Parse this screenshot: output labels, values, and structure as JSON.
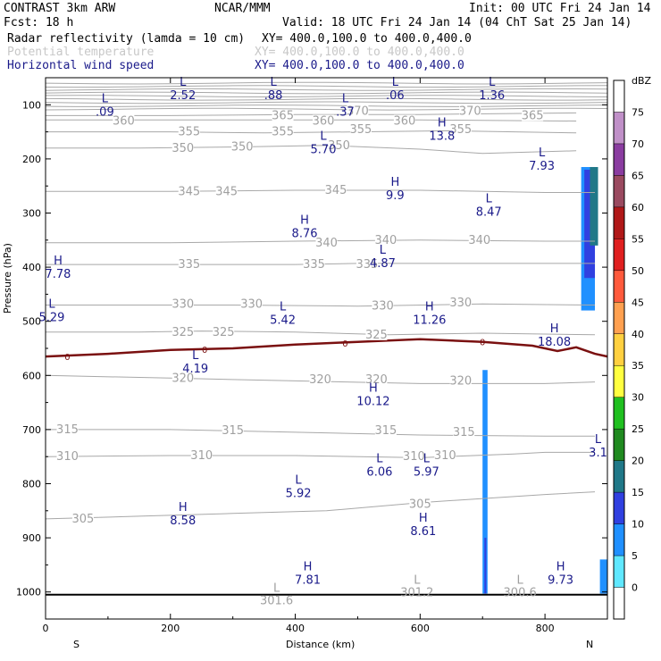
{
  "header": {
    "model": "CONTRAST  3km ARW",
    "org": "NCAR/MMM",
    "init": "Init: 00 UTC Fri 24 Jan 14",
    "fcst": "Fcst:   18 h",
    "valid": "Valid: 18 UTC Fri 24 Jan 14 (04 ChT Sat 25 Jan 14)",
    "field1_name": "Radar reflectivity (lamda = 10 cm)",
    "field1_xy": "XY= 400.0,100.0 to 400.0,400.0",
    "field2_name": "Potential temperature",
    "field2_xy": "XY= 400.0,100.0 to 400.0,400.0",
    "field3_name": "Horizontal wind speed",
    "field3_xy": "XY= 400.0,100.0 to 400.0,400.0"
  },
  "colors": {
    "theta": "#a8a8a8",
    "wind_labels": "#1a1a8a",
    "freezing_line": "#7a1010",
    "ground": "#000000"
  },
  "chart_data": {
    "type": "cross-section",
    "title": "Radar reflectivity / Potential temperature / Horizontal wind speed",
    "xlabel": "Distance (km)",
    "ylabel": "Pressure (hPa)",
    "xlim": [
      0,
      900
    ],
    "ylim": [
      1050,
      50
    ],
    "x_ticks": [
      "0",
      "200",
      "400",
      "600",
      "800"
    ],
    "y_ticks": [
      "100",
      "200",
      "300",
      "400",
      "500",
      "600",
      "700",
      "800",
      "900",
      "1000"
    ],
    "direction_left": "S",
    "direction_right": "N",
    "colorbar": {
      "unit": "dBZ",
      "labels": [
        "75",
        "70",
        "65",
        "60",
        "55",
        "50",
        "45",
        "40",
        "35",
        "30",
        "25",
        "20",
        "15",
        "10",
        "5",
        "0"
      ],
      "colors": [
        "#ffffff",
        "#c090c8",
        "#8a3ca0",
        "#9a4a60",
        "#b01818",
        "#e02020",
        "#ff5a3c",
        "#ffa050",
        "#ffd040",
        "#ffff40",
        "#20c020",
        "#208a20",
        "#207888",
        "#3040e0",
        "#2090ff",
        "#60e8ff",
        "#ffffff"
      ]
    },
    "theta_contours": [
      {
        "label": "365",
        "points": [
          [
            0,
            120
          ],
          [
            200,
            120
          ],
          [
            400,
            118
          ],
          [
            600,
            118
          ],
          [
            850,
            115
          ]
        ],
        "labels_at": [
          [
            380,
            120
          ],
          [
            790,
            118
          ]
        ]
      },
      {
        "label": "360",
        "points": [
          [
            0,
            128
          ],
          [
            200,
            128
          ],
          [
            400,
            128
          ],
          [
            600,
            128
          ],
          [
            850,
            130
          ]
        ],
        "labels_at": [
          [
            120,
            128
          ],
          [
            450,
            132
          ],
          [
            580,
            128
          ]
        ]
      },
      {
        "label": "355",
        "points": [
          [
            0,
            150
          ],
          [
            200,
            150
          ],
          [
            350,
            152
          ],
          [
            500,
            150
          ],
          [
            650,
            148
          ],
          [
            850,
            152
          ]
        ],
        "labels_at": [
          [
            230,
            150
          ],
          [
            380,
            152
          ],
          [
            520,
            148
          ],
          [
            670,
            148
          ]
        ]
      },
      {
        "label": "350",
        "points": [
          [
            0,
            180
          ],
          [
            150,
            180
          ],
          [
            300,
            178
          ],
          [
            450,
            175
          ],
          [
            600,
            182
          ],
          [
            700,
            190
          ],
          [
            850,
            185
          ]
        ],
        "labels_at": [
          [
            220,
            180
          ],
          [
            320,
            178
          ],
          [
            470,
            175
          ]
        ]
      },
      {
        "label": "345",
        "points": [
          [
            0,
            260
          ],
          [
            200,
            260
          ],
          [
            400,
            258
          ],
          [
            600,
            258
          ],
          [
            800,
            262
          ],
          [
            880,
            262
          ]
        ],
        "labels_at": [
          [
            230,
            260
          ],
          [
            290,
            262
          ],
          [
            460,
            260
          ]
        ]
      },
      {
        "label": "340",
        "points": [
          [
            0,
            355
          ],
          [
            200,
            355
          ],
          [
            400,
            352
          ],
          [
            600,
            350
          ],
          [
            800,
            352
          ],
          [
            880,
            352
          ]
        ],
        "labels_at": [
          [
            440,
            352
          ],
          [
            560,
            350
          ],
          [
            700,
            350
          ]
        ]
      },
      {
        "label": "335",
        "points": [
          [
            0,
            395
          ],
          [
            200,
            395
          ],
          [
            400,
            395
          ],
          [
            500,
            393
          ],
          [
            800,
            393
          ],
          [
            880,
            393
          ]
        ],
        "labels_at": [
          [
            230,
            395
          ],
          [
            430,
            395
          ],
          [
            500,
            393
          ]
        ]
      },
      {
        "label": "330",
        "points": [
          [
            0,
            470
          ],
          [
            150,
            470
          ],
          [
            300,
            470
          ],
          [
            500,
            472
          ],
          [
            700,
            468
          ],
          [
            880,
            470
          ]
        ],
        "labels_at": [
          [
            220,
            470
          ],
          [
            330,
            470
          ],
          [
            550,
            472
          ],
          [
            680,
            468
          ]
        ]
      },
      {
        "label": "325",
        "points": [
          [
            0,
            520
          ],
          [
            150,
            520
          ],
          [
            250,
            518
          ],
          [
            400,
            520
          ],
          [
            550,
            525
          ],
          [
            700,
            522
          ],
          [
            880,
            525
          ]
        ],
        "labels_at": [
          [
            220,
            520
          ],
          [
            280,
            520
          ],
          [
            540,
            525
          ]
        ]
      },
      {
        "label": "320",
        "points": [
          [
            0,
            600
          ],
          [
            200,
            605
          ],
          [
            400,
            610
          ],
          [
            600,
            615
          ],
          [
            800,
            615
          ],
          [
            880,
            612
          ]
        ],
        "labels_at": [
          [
            220,
            605
          ],
          [
            450,
            610
          ],
          [
            540,
            612
          ],
          [
            670,
            612
          ]
        ]
      },
      {
        "label": "315",
        "points": [
          [
            0,
            700
          ],
          [
            200,
            700
          ],
          [
            400,
            705
          ],
          [
            600,
            710
          ],
          [
            800,
            712
          ],
          [
            880,
            712
          ]
        ],
        "labels_at": [
          [
            30,
            700
          ],
          [
            300,
            705
          ],
          [
            550,
            705
          ],
          [
            680,
            710
          ]
        ]
      },
      {
        "label": "310",
        "points": [
          [
            0,
            750
          ],
          [
            200,
            748
          ],
          [
            400,
            748
          ],
          [
            600,
            752
          ],
          [
            750,
            745
          ],
          [
            800,
            742
          ],
          [
            880,
            742
          ]
        ],
        "labels_at": [
          [
            30,
            750
          ],
          [
            250,
            748
          ],
          [
            590,
            752
          ],
          [
            640,
            748
          ]
        ]
      },
      {
        "label": "305",
        "points": [
          [
            0,
            865
          ],
          [
            150,
            860
          ],
          [
            300,
            855
          ],
          [
            450,
            850
          ],
          [
            600,
            835
          ],
          [
            800,
            820
          ],
          [
            880,
            815
          ]
        ],
        "labels_at": [
          [
            60,
            865
          ],
          [
            600,
            838
          ]
        ]
      }
    ],
    "theta_labels": [
      {
        "text": "365",
        "x": 380,
        "p": 120
      },
      {
        "text": "360",
        "x": 125,
        "p": 130
      },
      {
        "text": "360",
        "x": 445,
        "p": 130
      },
      {
        "text": "360",
        "x": 575,
        "p": 130
      },
      {
        "text": "370",
        "x": 500,
        "p": 112
      },
      {
        "text": "370",
        "x": 680,
        "p": 112
      },
      {
        "text": "365",
        "x": 780,
        "p": 120
      },
      {
        "text": "355",
        "x": 230,
        "p": 150
      },
      {
        "text": "355",
        "x": 380,
        "p": 150
      },
      {
        "text": "355",
        "x": 505,
        "p": 146
      },
      {
        "text": "355",
        "x": 665,
        "p": 146
      },
      {
        "text": "350",
        "x": 220,
        "p": 180
      },
      {
        "text": "350",
        "x": 315,
        "p": 178
      },
      {
        "text": "350",
        "x": 470,
        "p": 175
      },
      {
        "text": "345",
        "x": 230,
        "p": 260
      },
      {
        "text": "345",
        "x": 290,
        "p": 260
      },
      {
        "text": "345",
        "x": 465,
        "p": 258
      },
      {
        "text": "340",
        "x": 450,
        "p": 355
      },
      {
        "text": "340",
        "x": 545,
        "p": 350
      },
      {
        "text": "340",
        "x": 695,
        "p": 350
      },
      {
        "text": "335",
        "x": 230,
        "p": 395
      },
      {
        "text": "335",
        "x": 430,
        "p": 395
      },
      {
        "text": "335",
        "x": 515,
        "p": 395
      },
      {
        "text": "330",
        "x": 220,
        "p": 468
      },
      {
        "text": "330",
        "x": 330,
        "p": 468
      },
      {
        "text": "330",
        "x": 540,
        "p": 472
      },
      {
        "text": "330",
        "x": 665,
        "p": 466
      },
      {
        "text": "325",
        "x": 220,
        "p": 520
      },
      {
        "text": "325",
        "x": 285,
        "p": 520
      },
      {
        "text": "325",
        "x": 530,
        "p": 525
      },
      {
        "text": "320",
        "x": 220,
        "p": 605
      },
      {
        "text": "320",
        "x": 440,
        "p": 608
      },
      {
        "text": "320",
        "x": 530,
        "p": 608
      },
      {
        "text": "320",
        "x": 665,
        "p": 610
      },
      {
        "text": "315",
        "x": 35,
        "p": 700
      },
      {
        "text": "315",
        "x": 300,
        "p": 702
      },
      {
        "text": "315",
        "x": 545,
        "p": 702
      },
      {
        "text": "315",
        "x": 670,
        "p": 705
      },
      {
        "text": "310",
        "x": 35,
        "p": 750
      },
      {
        "text": "310",
        "x": 250,
        "p": 748
      },
      {
        "text": "310",
        "x": 590,
        "p": 750
      },
      {
        "text": "310",
        "x": 640,
        "p": 748
      },
      {
        "text": "305",
        "x": 60,
        "p": 865
      },
      {
        "text": "305",
        "x": 600,
        "p": 838
      }
    ],
    "wind_extrema": [
      {
        "hl": "L",
        "value": ".09",
        "x": 95,
        "p": 95
      },
      {
        "hl": "L",
        "value": "2.52",
        "x": 220,
        "p": 65
      },
      {
        "hl": "L",
        "value": ".88",
        "x": 365,
        "p": 65
      },
      {
        "hl": "L",
        "value": ".37",
        "x": 480,
        "p": 95
      },
      {
        "hl": "L",
        "value": ".06",
        "x": 560,
        "p": 65
      },
      {
        "hl": "L",
        "value": "1.36",
        "x": 715,
        "p": 65
      },
      {
        "hl": "H",
        "value": "13.8",
        "x": 635,
        "p": 140
      },
      {
        "hl": "L",
        "value": "7.93",
        "x": 795,
        "p": 195
      },
      {
        "hl": "L",
        "value": "5.70",
        "x": 445,
        "p": 165
      },
      {
        "hl": "H",
        "value": "9.9",
        "x": 560,
        "p": 250
      },
      {
        "hl": "L",
        "value": "8.47",
        "x": 710,
        "p": 280
      },
      {
        "hl": "H",
        "value": "8.76",
        "x": 415,
        "p": 320
      },
      {
        "hl": "L",
        "value": "4.87",
        "x": 540,
        "p": 375
      },
      {
        "hl": "H",
        "value": "7.78",
        "x": 20,
        "p": 395
      },
      {
        "hl": "L",
        "value": "5.29",
        "x": 10,
        "p": 475
      },
      {
        "hl": "L",
        "value": "5.42",
        "x": 380,
        "p": 480
      },
      {
        "hl": "H",
        "value": "11.26",
        "x": 615,
        "p": 480
      },
      {
        "hl": "H",
        "value": "18.08",
        "x": 815,
        "p": 520
      },
      {
        "hl": "L",
        "value": "4.19",
        "x": 240,
        "p": 570
      },
      {
        "hl": "H",
        "value": "10.12",
        "x": 525,
        "p": 630
      },
      {
        "hl": "L",
        "value": "3.1",
        "x": 885,
        "p": 725
      },
      {
        "hl": "L",
        "value": "6.06",
        "x": 535,
        "p": 760
      },
      {
        "hl": "L",
        "value": "5.97",
        "x": 610,
        "p": 760
      },
      {
        "hl": "L",
        "value": "5.92",
        "x": 405,
        "p": 800
      },
      {
        "hl": "H",
        "value": "8.58",
        "x": 220,
        "p": 850
      },
      {
        "hl": "H",
        "value": "8.61",
        "x": 605,
        "p": 870
      },
      {
        "hl": "H",
        "value": "7.81",
        "x": 420,
        "p": 960
      },
      {
        "hl": "H",
        "value": "9.73",
        "x": 825,
        "p": 960
      }
    ],
    "theta_extrema": [
      {
        "hl": "L",
        "value": "301.6",
        "x": 370,
        "p": 1000
      },
      {
        "hl": "L",
        "value": "301.2",
        "x": 595,
        "p": 985
      },
      {
        "hl": "L",
        "value": "300.6",
        "x": 760,
        "p": 985
      }
    ],
    "freezing_line": {
      "label": "0",
      "points": [
        [
          0,
          565
        ],
        [
          100,
          560
        ],
        [
          200,
          553
        ],
        [
          300,
          550
        ],
        [
          400,
          543
        ],
        [
          500,
          538
        ],
        [
          600,
          533
        ],
        [
          700,
          538
        ],
        [
          780,
          545
        ],
        [
          820,
          555
        ],
        [
          850,
          548
        ],
        [
          880,
          560
        ],
        [
          900,
          565
        ]
      ],
      "label_positions": [
        [
          35,
          565
        ],
        [
          255,
          552
        ],
        [
          480,
          540
        ],
        [
          700,
          538
        ]
      ]
    },
    "ground_p": 1005,
    "reflectivity": [
      {
        "dbz": 5,
        "x0": 700,
        "x1": 708,
        "p0": 590,
        "p1": 1003
      },
      {
        "dbz": 10,
        "x0": 703,
        "x1": 706,
        "p0": 900,
        "p1": 1003
      },
      {
        "dbz": 5,
        "x0": 858,
        "x1": 880,
        "p0": 215,
        "p1": 480
      },
      {
        "dbz": 10,
        "x0": 863,
        "x1": 880,
        "p0": 220,
        "p1": 420
      },
      {
        "dbz": 15,
        "x0": 872,
        "x1": 885,
        "p0": 215,
        "p1": 360
      },
      {
        "dbz": 5,
        "x0": 888,
        "x1": 900,
        "p0": 940,
        "p1": 1003
      }
    ]
  }
}
